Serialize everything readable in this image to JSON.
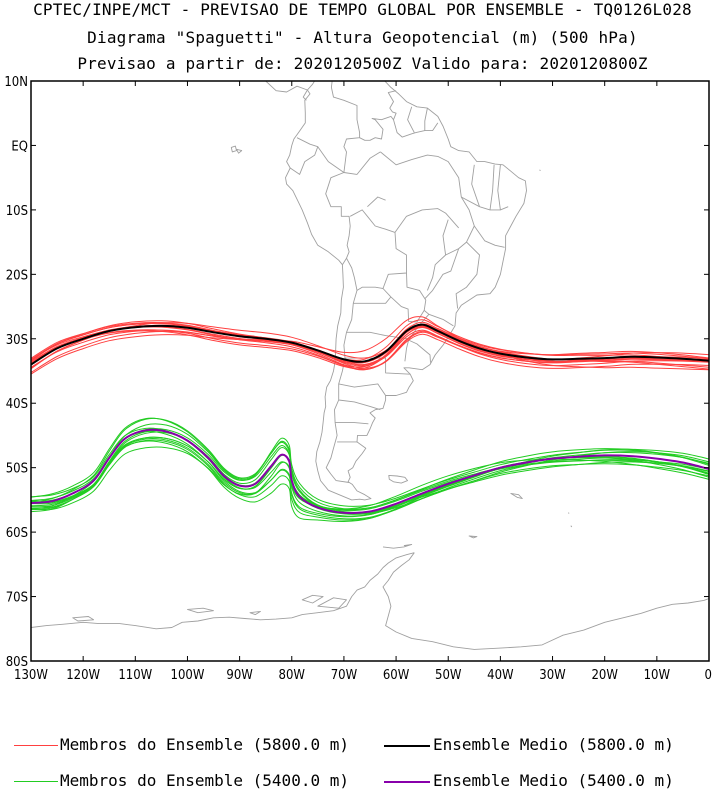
{
  "header": {
    "line1": "CPTEC/INPE/MCT - PREVISAO DE TEMPO GLOBAL POR ENSEMBLE - TQ0126L028",
    "line2": "Diagrama \"Spaguetti\" - Altura Geopotencial (m) (500 hPa)",
    "line3": "Previsao a partir de: 2020120500Z  Valido para: 2020120800Z"
  },
  "axes": {
    "lat_labels": [
      "10N",
      "EQ",
      "10S",
      "20S",
      "30S",
      "40S",
      "50S",
      "60S",
      "70S",
      "80S"
    ],
    "lat_values": [
      10,
      0,
      -10,
      -20,
      -30,
      -40,
      -50,
      -60,
      -70,
      -80
    ],
    "lon_labels": [
      "130W",
      "120W",
      "110W",
      "100W",
      "90W",
      "80W",
      "70W",
      "60W",
      "50W",
      "40W",
      "30W",
      "20W",
      "10W",
      "0"
    ],
    "lon_values": [
      -130,
      -120,
      -110,
      -100,
      -90,
      -80,
      -70,
      -60,
      -50,
      -40,
      -30,
      -20,
      -10,
      0
    ]
  },
  "colors": {
    "member_5800": "#ff4040",
    "mean_5800": "#000000",
    "member_5400": "#22cc22",
    "mean_5400": "#8800aa",
    "coast": "#a0a0a0"
  },
  "legend": {
    "member_5800": "Membros do Ensemble (5800.0 m)",
    "mean_5800": "Ensemble Medio (5800.0 m)",
    "member_5400": "Membros do Ensemble (5400.0 m)",
    "mean_5400": "Ensemble Medio (5400.0 m)"
  },
  "contours": {
    "mean_5800": [
      [
        -130,
        -34
      ],
      [
        -125,
        -31.5
      ],
      [
        -120,
        -30
      ],
      [
        -115,
        -28.8
      ],
      [
        -110,
        -28.2
      ],
      [
        -105,
        -28
      ],
      [
        -100,
        -28.3
      ],
      [
        -95,
        -29
      ],
      [
        -90,
        -29.6
      ],
      [
        -85,
        -30
      ],
      [
        -80,
        -30.6
      ],
      [
        -75,
        -31.8
      ],
      [
        -70,
        -33.2
      ],
      [
        -66,
        -33.5
      ],
      [
        -62,
        -32
      ],
      [
        -58,
        -28.8
      ],
      [
        -55,
        -27.8
      ],
      [
        -52,
        -28.8
      ],
      [
        -48,
        -30.3
      ],
      [
        -44,
        -31.5
      ],
      [
        -40,
        -32.3
      ],
      [
        -35,
        -32.9
      ],
      [
        -30,
        -33.2
      ],
      [
        -25,
        -33.1
      ],
      [
        -20,
        -33
      ],
      [
        -15,
        -32.8
      ],
      [
        -10,
        -32.9
      ],
      [
        -5,
        -33.1
      ],
      [
        0,
        -33.4
      ]
    ],
    "mean_5400": [
      [
        -130,
        -55.5
      ],
      [
        -126,
        -55.2
      ],
      [
        -122,
        -54
      ],
      [
        -118,
        -52
      ],
      [
        -115,
        -48.5
      ],
      [
        -112,
        -45.5
      ],
      [
        -108,
        -44.2
      ],
      [
        -104,
        -44.4
      ],
      [
        -100,
        -45.8
      ],
      [
        -96,
        -48.5
      ],
      [
        -93,
        -51.3
      ],
      [
        -90,
        -52.8
      ],
      [
        -87,
        -52.5
      ],
      [
        -84,
        -49.8
      ],
      [
        -82,
        -48
      ],
      [
        -80.5,
        -49
      ],
      [
        -80,
        -52
      ],
      [
        -78.5,
        -54.5
      ],
      [
        -75,
        -56.2
      ],
      [
        -70,
        -57
      ],
      [
        -65,
        -56.8
      ],
      [
        -60,
        -55.6
      ],
      [
        -55,
        -54
      ],
      [
        -50,
        -52.5
      ],
      [
        -45,
        -51.2
      ],
      [
        -40,
        -50
      ],
      [
        -35,
        -49.2
      ],
      [
        -30,
        -48.6
      ],
      [
        -25,
        -48.3
      ],
      [
        -20,
        -48.1
      ],
      [
        -15,
        -48.2
      ],
      [
        -10,
        -48.6
      ],
      [
        -5,
        -49.2
      ],
      [
        0,
        -50.2
      ]
    ]
  }
}
